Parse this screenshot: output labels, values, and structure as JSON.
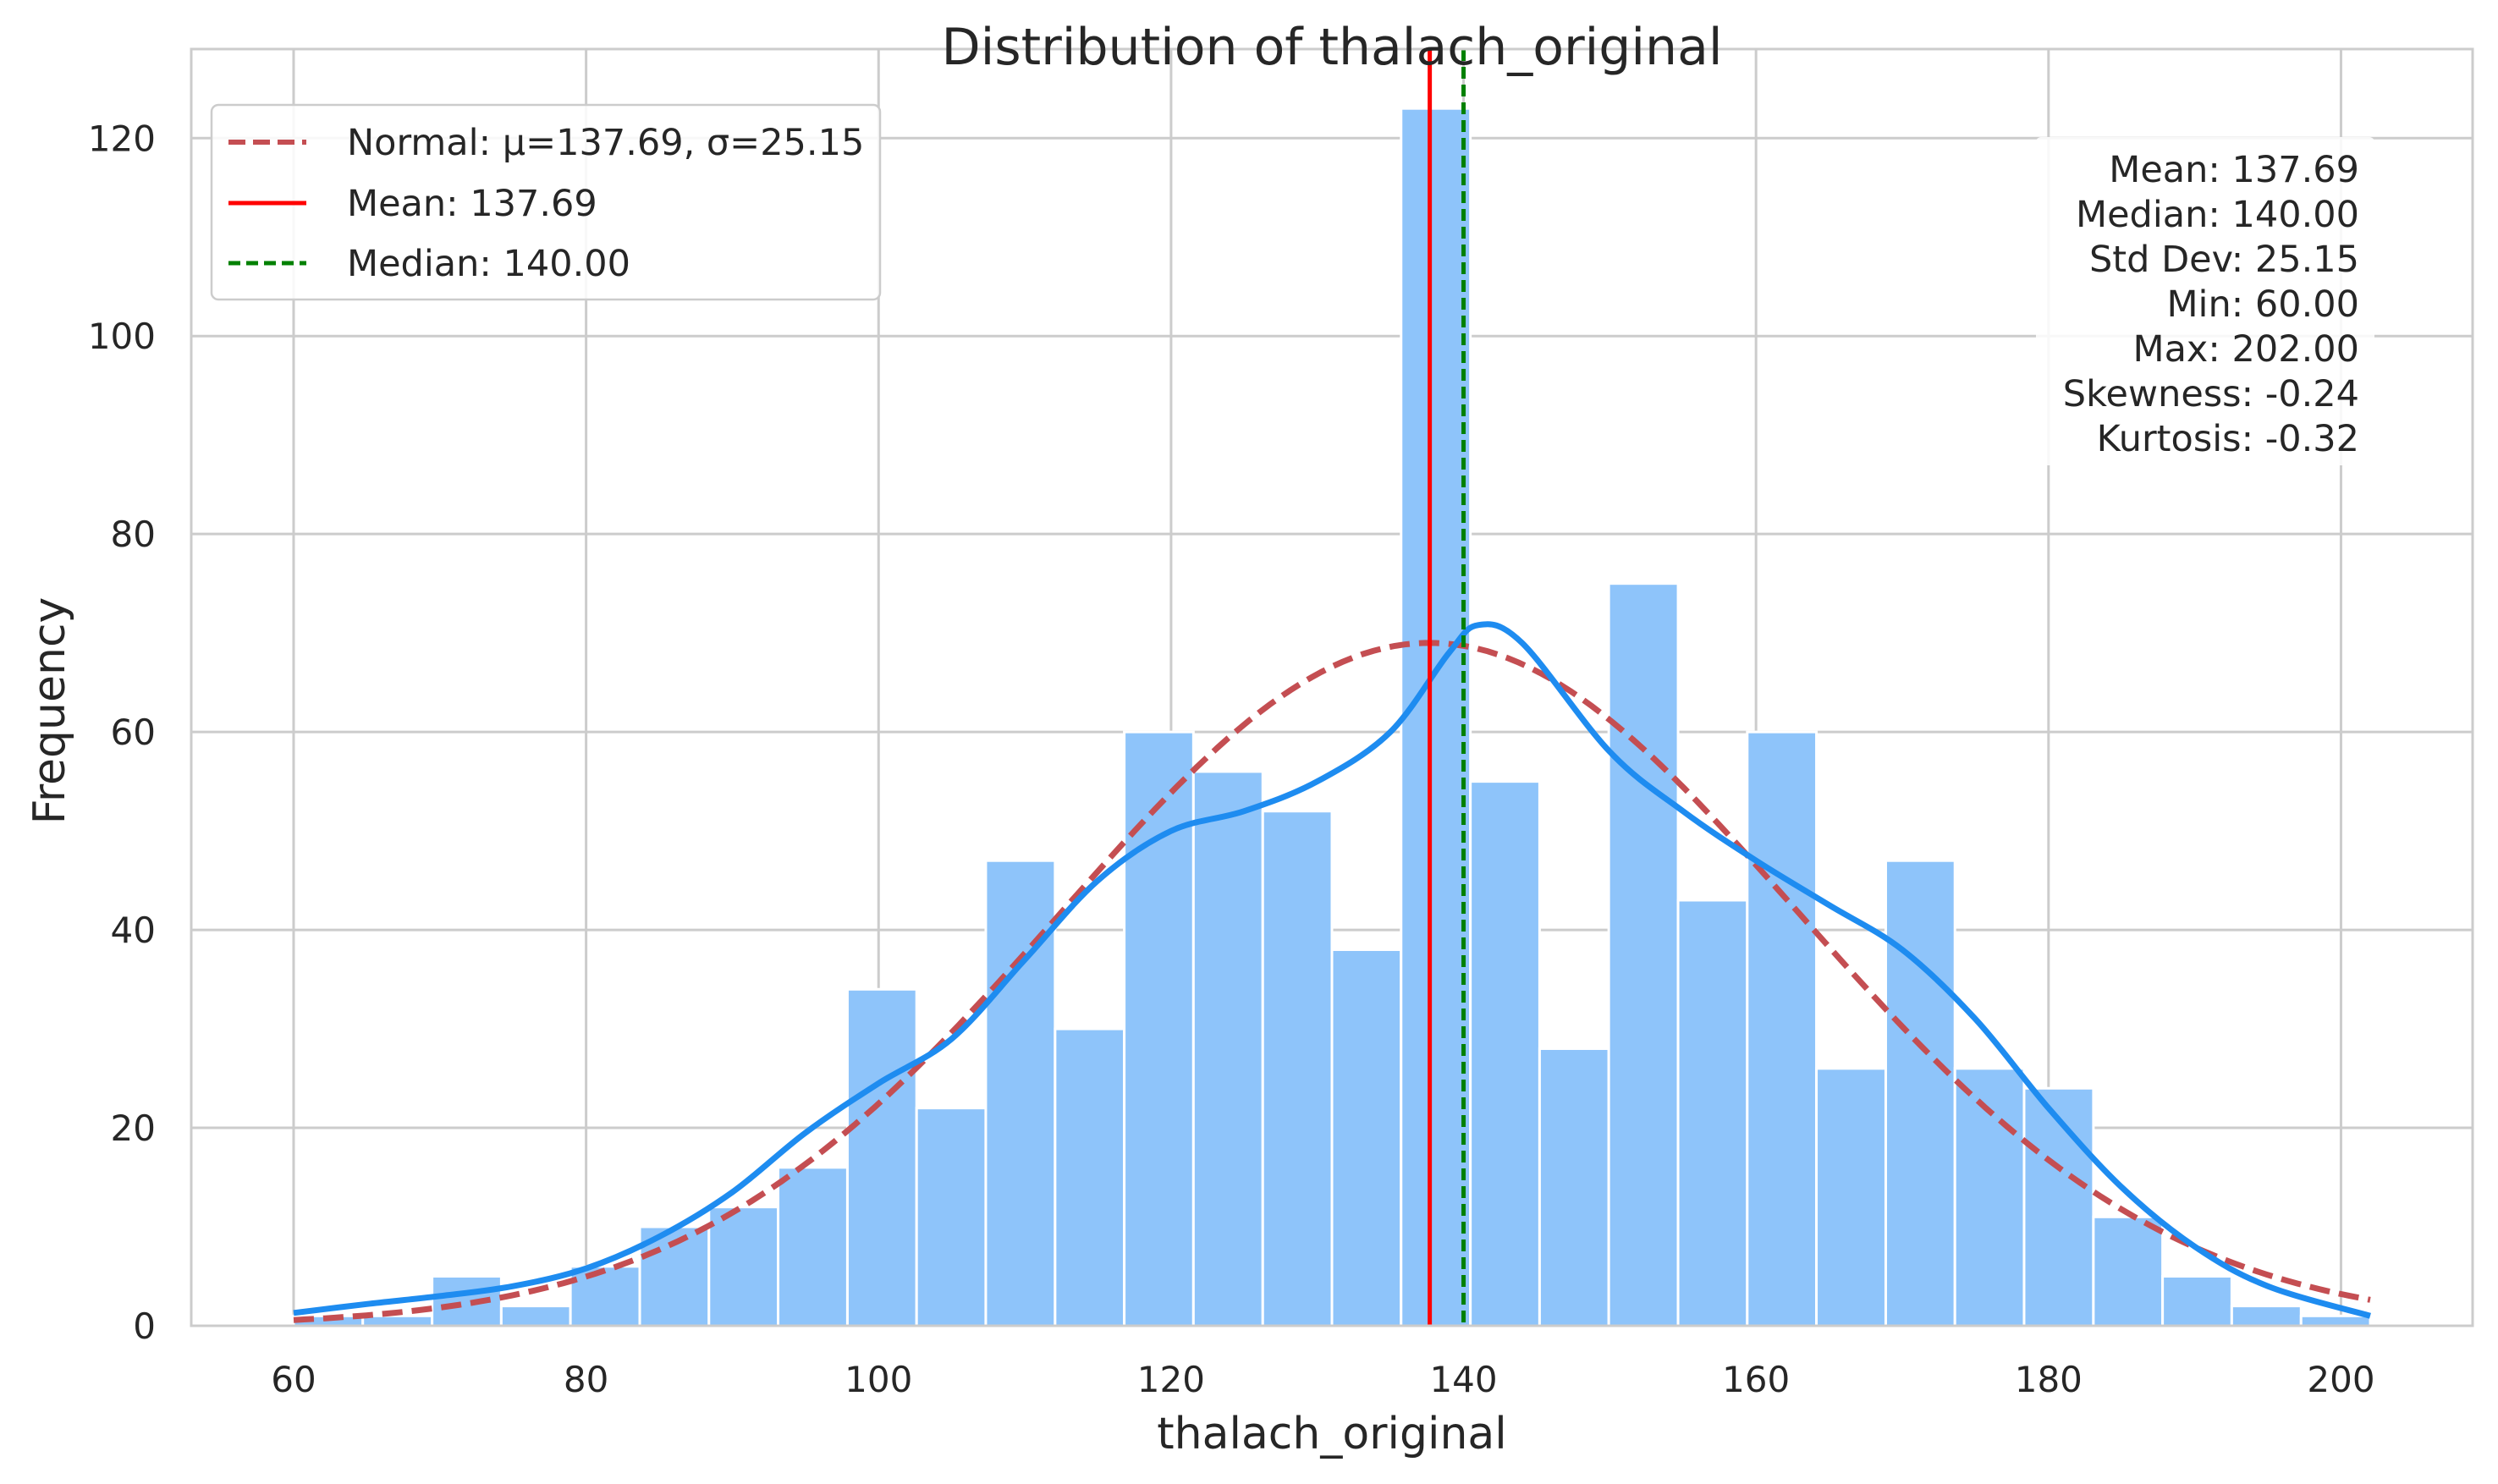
{
  "chart_data": {
    "type": "bar",
    "title": "Distribution of thalach_original",
    "xlabel": "thalach_original",
    "ylabel": "Frequency",
    "xlim": [
      53,
      209
    ],
    "ylim": [
      0,
      129
    ],
    "xticks": [
      60,
      80,
      100,
      120,
      140,
      160,
      180,
      200
    ],
    "yticks": [
      0,
      20,
      40,
      60,
      80,
      100,
      120
    ],
    "grid": true,
    "legend_position": "top-left",
    "bar_color": "#8EC4FA",
    "bins": [
      {
        "x0": 60.0,
        "x1": 64.73,
        "count": 1
      },
      {
        "x0": 64.73,
        "x1": 69.47,
        "count": 1
      },
      {
        "x0": 69.47,
        "x1": 74.2,
        "count": 5
      },
      {
        "x0": 74.2,
        "x1": 78.93,
        "count": 2
      },
      {
        "x0": 78.93,
        "x1": 83.67,
        "count": 6
      },
      {
        "x0": 83.67,
        "x1": 88.4,
        "count": 10
      },
      {
        "x0": 88.4,
        "x1": 93.13,
        "count": 12
      },
      {
        "x0": 93.13,
        "x1": 97.87,
        "count": 16
      },
      {
        "x0": 97.87,
        "x1": 102.6,
        "count": 34
      },
      {
        "x0": 102.6,
        "x1": 107.33,
        "count": 22
      },
      {
        "x0": 107.33,
        "x1": 112.07,
        "count": 47
      },
      {
        "x0": 112.07,
        "x1": 116.8,
        "count": 30
      },
      {
        "x0": 116.8,
        "x1": 121.53,
        "count": 60
      },
      {
        "x0": 121.53,
        "x1": 126.27,
        "count": 56
      },
      {
        "x0": 126.27,
        "x1": 131.0,
        "count": 52
      },
      {
        "x0": 131.0,
        "x1": 135.73,
        "count": 38
      },
      {
        "x0": 135.73,
        "x1": 140.47,
        "count": 123
      },
      {
        "x0": 140.47,
        "x1": 145.2,
        "count": 55
      },
      {
        "x0": 145.2,
        "x1": 149.93,
        "count": 28
      },
      {
        "x0": 149.93,
        "x1": 154.67,
        "count": 75
      },
      {
        "x0": 154.67,
        "x1": 159.4,
        "count": 43
      },
      {
        "x0": 159.4,
        "x1": 164.13,
        "count": 60
      },
      {
        "x0": 164.13,
        "x1": 168.87,
        "count": 26
      },
      {
        "x0": 168.87,
        "x1": 173.6,
        "count": 47
      },
      {
        "x0": 173.6,
        "x1": 178.33,
        "count": 26
      },
      {
        "x0": 178.33,
        "x1": 183.07,
        "count": 24
      },
      {
        "x0": 183.07,
        "x1": 187.8,
        "count": 11
      },
      {
        "x0": 187.8,
        "x1": 192.53,
        "count": 5
      },
      {
        "x0": 192.53,
        "x1": 197.27,
        "count": 2
      },
      {
        "x0": 197.27,
        "x1": 202.0,
        "count": 1
      }
    ],
    "normal_curve": {
      "label": "Normal: μ=137.69, σ=25.15",
      "mu": 137.69,
      "sigma": 25.15,
      "peak": 69,
      "x_range": [
        60,
        202
      ],
      "color": "#C44E52"
    },
    "kde_curve": {
      "color": "#1E8CF0",
      "points": [
        [
          60,
          1.3
        ],
        [
          65,
          2.2
        ],
        [
          70,
          3.0
        ],
        [
          75,
          4.0
        ],
        [
          80,
          5.8
        ],
        [
          85,
          9.0
        ],
        [
          90,
          13.5
        ],
        [
          95,
          19.5
        ],
        [
          100,
          24.5
        ],
        [
          105,
          29.0
        ],
        [
          110,
          37.0
        ],
        [
          115,
          45.0
        ],
        [
          120,
          50.0
        ],
        [
          125,
          52.0
        ],
        [
          130,
          55.0
        ],
        [
          135,
          60.0
        ],
        [
          139,
          68.0
        ],
        [
          141,
          70.8
        ],
        [
          144,
          69.0
        ],
        [
          150,
          58.0
        ],
        [
          155,
          52.0
        ],
        [
          160,
          47.0
        ],
        [
          165,
          42.5
        ],
        [
          170,
          38.0
        ],
        [
          175,
          31.0
        ],
        [
          180,
          22.0
        ],
        [
          185,
          14.0
        ],
        [
          190,
          8.0
        ],
        [
          195,
          4.0
        ],
        [
          202,
          1.0
        ]
      ]
    },
    "mean_line": {
      "label": "Mean: 137.69",
      "value": 137.69,
      "color": "#FF0000"
    },
    "median_line": {
      "label": "Median: 140.00",
      "value": 140.0,
      "color": "#008000"
    },
    "stats": [
      "Mean: 137.69",
      "Median: 140.00",
      "Std Dev: 25.15",
      "Min: 60.00",
      "Max: 202.00",
      "Skewness: -0.24",
      "Kurtosis: -0.32"
    ]
  }
}
